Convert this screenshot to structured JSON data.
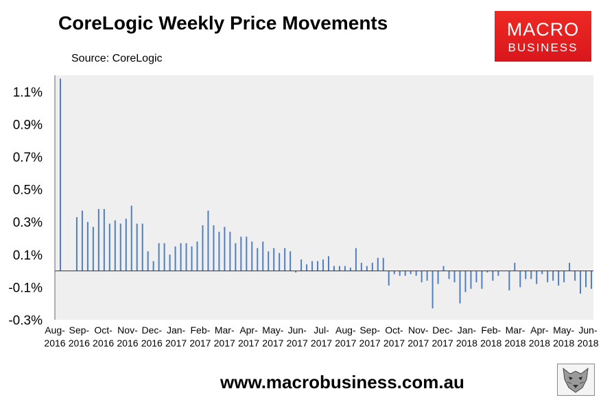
{
  "header": {
    "title": "CoreLogic Weekly Price Movements",
    "source": "Source: CoreLogic"
  },
  "logo": {
    "line1": "MACRO",
    "line2": "BUSINESS",
    "color": "#e3201f"
  },
  "footer": {
    "url": "www.macrobusiness.com.au",
    "icon": "wolf-logo-icon"
  },
  "colors": {
    "bar": "#4f7fc0",
    "plot_background": "#efefef"
  },
  "chart_data": {
    "type": "bar",
    "title": "CoreLogic Weekly Price Movements",
    "xlabel": "",
    "ylabel": "",
    "ylim": [
      -0.3,
      1.2
    ],
    "grid": false,
    "legend": "none",
    "yticks": [
      "1.1%",
      "0.9%",
      "0.7%",
      "0.5%",
      "0.3%",
      "0.1%",
      "-0.1%",
      "-0.3%"
    ],
    "xtick_labels": [
      "Aug-\n2016",
      "Sep-\n2016",
      "Oct-\n2016",
      "Nov-\n2016",
      "Dec-\n2016",
      "Jan-\n2017",
      "Feb-\n2017",
      "Mar-\n2017",
      "Apr-\n2017",
      "May-\n2017",
      "Jun-\n2017",
      "Jul-\n2017",
      "Aug-\n2017",
      "Sep-\n2017",
      "Oct-\n2017",
      "Nov-\n2017",
      "Dec-\n2017",
      "Jan-\n2018",
      "Feb-\n2018",
      "Mar-\n2018",
      "Apr-\n2018",
      "May-\n2018",
      "Jun-\n2018"
    ],
    "series": [
      {
        "values": [
          1.18,
          0.0,
          0.0,
          0.33,
          0.37,
          0.3,
          0.27,
          0.38,
          0.38,
          0.29,
          0.31,
          0.29,
          0.32,
          0.4,
          0.29,
          0.29,
          0.12,
          0.06,
          0.17,
          0.17,
          0.1,
          0.15,
          0.17,
          0.17,
          0.15,
          0.18,
          0.28,
          0.37,
          0.28,
          0.24,
          0.27,
          0.24,
          0.17,
          0.21,
          0.21,
          0.18,
          0.14,
          0.18,
          0.12,
          0.14,
          0.11,
          0.14,
          0.12,
          -0.01,
          0.07,
          0.04,
          0.06,
          0.06,
          0.07,
          0.09,
          0.03,
          0.03,
          0.03,
          0.02,
          0.14,
          0.05,
          0.03,
          0.05,
          0.08,
          0.08,
          -0.09,
          -0.02,
          -0.03,
          -0.03,
          -0.02,
          -0.03,
          -0.07,
          -0.06,
          -0.23,
          -0.08,
          0.03,
          -0.05,
          -0.07,
          -0.2,
          -0.13,
          -0.11,
          -0.07,
          -0.11,
          -0.01,
          -0.06,
          -0.03,
          0.0,
          -0.12,
          0.05,
          -0.1,
          -0.05,
          -0.05,
          -0.08,
          -0.02,
          -0.07,
          -0.06,
          -0.09,
          -0.07,
          0.05,
          -0.06,
          -0.14,
          -0.1,
          -0.11
        ]
      }
    ]
  }
}
